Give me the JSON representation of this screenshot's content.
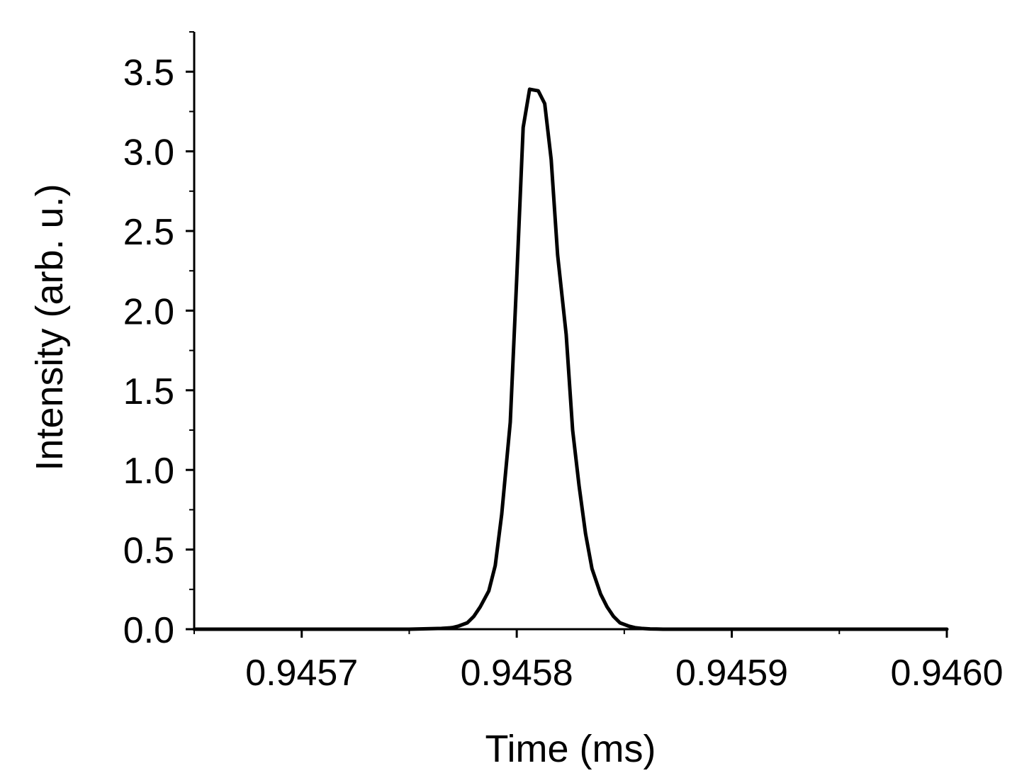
{
  "chart_data": {
    "type": "line",
    "title": "",
    "xlabel": "Time (ms)",
    "ylabel": "Intensity (arb. u.)",
    "xlim": [
      0.94565,
      0.946
    ],
    "ylim": [
      0.0,
      3.75
    ],
    "x_ticks": [
      0.9457,
      0.9458,
      0.9459,
      0.946
    ],
    "x_tick_labels": [
      "0.9457",
      "0.9458",
      "0.9459",
      "0.9460"
    ],
    "x_minor_ticks": [
      0.94565,
      0.94575,
      0.94585,
      0.94595
    ],
    "y_ticks": [
      0.0,
      0.5,
      1.0,
      1.5,
      2.0,
      2.5,
      3.0,
      3.5
    ],
    "y_tick_labels": [
      "0.0",
      "0.5",
      "1.0",
      "1.5",
      "2.0",
      "2.5",
      "3.0",
      "3.5"
    ],
    "y_minor_ticks": [
      0.25,
      0.75,
      1.25,
      1.75,
      2.25,
      2.75,
      3.25,
      3.75
    ],
    "grid": false,
    "legend": "none",
    "line_color": "#000000",
    "series": [
      {
        "x": [
          0.94565,
          0.9457,
          0.94575,
          0.945765,
          0.94577,
          0.945773,
          0.945777,
          0.94578,
          0.945783,
          0.945787,
          0.94579,
          0.945793,
          0.945797,
          0.9458,
          0.945803,
          0.945806,
          0.94581,
          0.945813,
          0.945816,
          0.945819,
          0.945823,
          0.945826,
          0.945829,
          0.945832,
          0.945835,
          0.945839,
          0.945842,
          0.945845,
          0.945848,
          0.945852,
          0.945855,
          0.945858,
          0.945862,
          0.945865,
          0.945868,
          0.945872,
          0.945875,
          0.945878,
          0.945882,
          0.945885,
          0.945888,
          0.945892,
          0.9459,
          0.94595,
          0.946
        ],
        "y": [
          0.0,
          0.0,
          0.0,
          0.005,
          0.01,
          0.02,
          0.04,
          0.08,
          0.14,
          0.24,
          0.4,
          0.72,
          1.3,
          2.2,
          3.15,
          3.39,
          3.38,
          3.3,
          2.95,
          2.35,
          1.85,
          1.25,
          0.9,
          0.6,
          0.38,
          0.22,
          0.14,
          0.08,
          0.04,
          0.02,
          0.01,
          0.005,
          0.002,
          0.001,
          0.0,
          0.0,
          0.0,
          0.0,
          0.0,
          0.0,
          0.0,
          0.0,
          0.0,
          0.0,
          0.0
        ]
      }
    ]
  }
}
